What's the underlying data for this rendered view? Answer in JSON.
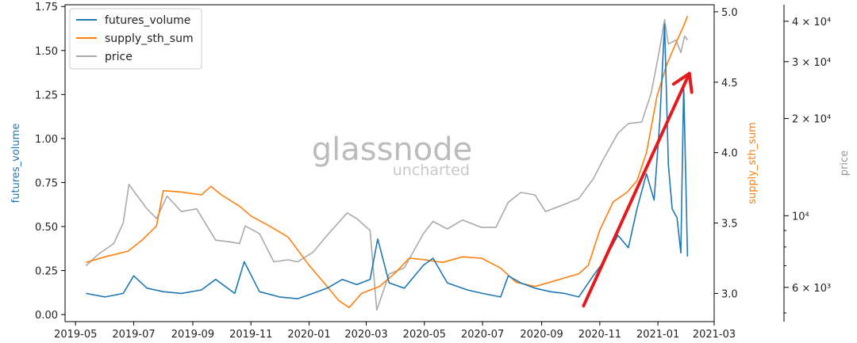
{
  "chart_data": {
    "type": "line",
    "x_ticks": [
      "2019-05",
      "2019-07",
      "2019-09",
      "2019-11",
      "2020-01",
      "2020-03",
      "2020-05",
      "2020-07",
      "2020-09",
      "2020-11",
      "2021-01",
      "2021-03"
    ],
    "axes": {
      "left": {
        "label": "futures_volume",
        "ticks": [
          "0.00",
          "0.25",
          "0.50",
          "0.75",
          "1.00",
          "1.25",
          "1.50",
          "1.75"
        ],
        "range": [
          -0.04,
          1.76
        ],
        "color": "#1f77b4"
      },
      "right1": {
        "label": "supply_sth_sum",
        "ticks": [
          "3.0",
          "3.5",
          "4.0",
          "4.5",
          "5.0"
        ],
        "range": [
          2.8,
          5.05
        ],
        "color": "#ff7f0e"
      },
      "right2": {
        "label": "price",
        "ticks": [
          "6 × 10³",
          "10⁴",
          "2 × 10⁴",
          "3 × 10⁴",
          "4 × 10⁴"
        ],
        "tick_values": [
          6000,
          10000,
          20000,
          30000,
          40000
        ],
        "range": [
          4700,
          45000
        ],
        "scale": "log",
        "color": "#888888"
      }
    },
    "legend": {
      "placement": "top-left",
      "entries": [
        "futures_volume",
        "supply_sth_sum",
        "price"
      ]
    },
    "watermark": {
      "main": "glassnode",
      "sub": "uncharted"
    },
    "series": [
      {
        "name": "futures_volume",
        "color": "#1f77b4",
        "axis": "left",
        "points": [
          [
            "2019-05-12",
            0.12
          ],
          [
            "2019-06-01",
            0.1
          ],
          [
            "2019-06-20",
            0.12
          ],
          [
            "2019-07-01",
            0.22
          ],
          [
            "2019-07-15",
            0.15
          ],
          [
            "2019-08-01",
            0.13
          ],
          [
            "2019-08-20",
            0.12
          ],
          [
            "2019-09-10",
            0.14
          ],
          [
            "2019-09-25",
            0.2
          ],
          [
            "2019-10-15",
            0.12
          ],
          [
            "2019-10-25",
            0.3
          ],
          [
            "2019-11-10",
            0.13
          ],
          [
            "2019-12-01",
            0.1
          ],
          [
            "2019-12-20",
            0.09
          ],
          [
            "2020-01-05",
            0.12
          ],
          [
            "2020-01-20",
            0.15
          ],
          [
            "2020-02-05",
            0.2
          ],
          [
            "2020-02-20",
            0.17
          ],
          [
            "2020-03-05",
            0.2
          ],
          [
            "2020-03-13",
            0.43
          ],
          [
            "2020-03-25",
            0.18
          ],
          [
            "2020-04-10",
            0.15
          ],
          [
            "2020-04-30",
            0.28
          ],
          [
            "2020-05-10",
            0.32
          ],
          [
            "2020-05-25",
            0.18
          ],
          [
            "2020-06-15",
            0.14
          ],
          [
            "2020-07-01",
            0.12
          ],
          [
            "2020-07-20",
            0.1
          ],
          [
            "2020-07-28",
            0.22
          ],
          [
            "2020-08-10",
            0.18
          ],
          [
            "2020-08-25",
            0.15
          ],
          [
            "2020-09-10",
            0.13
          ],
          [
            "2020-09-25",
            0.12
          ],
          [
            "2020-10-10",
            0.1
          ],
          [
            "2020-10-25",
            0.22
          ],
          [
            "2020-11-05",
            0.3
          ],
          [
            "2020-11-20",
            0.45
          ],
          [
            "2020-12-01",
            0.38
          ],
          [
            "2020-12-10",
            0.6
          ],
          [
            "2020-12-20",
            0.8
          ],
          [
            "2020-12-28",
            0.65
          ],
          [
            "2021-01-03",
            1.1
          ],
          [
            "2021-01-08",
            1.65
          ],
          [
            "2021-01-12",
            0.85
          ],
          [
            "2021-01-16",
            0.6
          ],
          [
            "2021-01-21",
            0.55
          ],
          [
            "2021-01-25",
            0.35
          ],
          [
            "2021-01-28",
            1.3
          ],
          [
            "2021-02-01",
            0.33
          ]
        ]
      },
      {
        "name": "supply_sth_sum",
        "color": "#ff7f0e",
        "axis": "right1",
        "points": [
          [
            "2019-05-12",
            3.22
          ],
          [
            "2019-06-01",
            3.26
          ],
          [
            "2019-06-25",
            3.3
          ],
          [
            "2019-07-10",
            3.38
          ],
          [
            "2019-07-25",
            3.48
          ],
          [
            "2019-08-01",
            3.73
          ],
          [
            "2019-08-20",
            3.72
          ],
          [
            "2019-09-10",
            3.7
          ],
          [
            "2019-09-20",
            3.76
          ],
          [
            "2019-10-01",
            3.7
          ],
          [
            "2019-10-20",
            3.62
          ],
          [
            "2019-11-01",
            3.55
          ],
          [
            "2019-11-20",
            3.48
          ],
          [
            "2019-12-10",
            3.4
          ],
          [
            "2020-01-01",
            3.2
          ],
          [
            "2020-01-20",
            3.05
          ],
          [
            "2020-02-01",
            2.95
          ],
          [
            "2020-02-12",
            2.9
          ],
          [
            "2020-02-25",
            3.0
          ],
          [
            "2020-03-15",
            3.05
          ],
          [
            "2020-04-01",
            3.15
          ],
          [
            "2020-04-15",
            3.25
          ],
          [
            "2020-05-01",
            3.24
          ],
          [
            "2020-05-20",
            3.22
          ],
          [
            "2020-06-10",
            3.26
          ],
          [
            "2020-06-30",
            3.25
          ],
          [
            "2020-07-20",
            3.18
          ],
          [
            "2020-08-05",
            3.08
          ],
          [
            "2020-08-25",
            3.05
          ],
          [
            "2020-09-10",
            3.08
          ],
          [
            "2020-09-30",
            3.12
          ],
          [
            "2020-10-10",
            3.14
          ],
          [
            "2020-10-20",
            3.2
          ],
          [
            "2020-11-01",
            3.45
          ],
          [
            "2020-11-15",
            3.65
          ],
          [
            "2020-11-30",
            3.72
          ],
          [
            "2020-12-10",
            3.8
          ],
          [
            "2020-12-20",
            4.0
          ],
          [
            "2020-12-31",
            4.4
          ],
          [
            "2021-01-10",
            4.62
          ],
          [
            "2021-01-20",
            4.78
          ],
          [
            "2021-01-28",
            4.9
          ],
          [
            "2021-02-01",
            4.97
          ]
        ]
      },
      {
        "name": "price",
        "color": "#aaaaaa",
        "axis": "right2",
        "points": [
          [
            "2019-05-12",
            7000
          ],
          [
            "2019-05-25",
            7600
          ],
          [
            "2019-06-10",
            8200
          ],
          [
            "2019-06-20",
            9500
          ],
          [
            "2019-06-26",
            12500
          ],
          [
            "2019-07-05",
            11500
          ],
          [
            "2019-07-15",
            10500
          ],
          [
            "2019-07-25",
            9800
          ],
          [
            "2019-08-05",
            11500
          ],
          [
            "2019-08-20",
            10300
          ],
          [
            "2019-09-05",
            10500
          ],
          [
            "2019-09-25",
            8400
          ],
          [
            "2019-10-10",
            8300
          ],
          [
            "2019-10-20",
            8200
          ],
          [
            "2019-10-26",
            9300
          ],
          [
            "2019-11-10",
            8800
          ],
          [
            "2019-11-25",
            7200
          ],
          [
            "2019-12-10",
            7300
          ],
          [
            "2019-12-20",
            7200
          ],
          [
            "2020-01-05",
            7700
          ],
          [
            "2020-01-20",
            8700
          ],
          [
            "2020-02-10",
            10200
          ],
          [
            "2020-02-20",
            9800
          ],
          [
            "2020-03-05",
            9000
          ],
          [
            "2020-03-12",
            5100
          ],
          [
            "2020-03-25",
            6600
          ],
          [
            "2020-04-10",
            6900
          ],
          [
            "2020-04-30",
            8800
          ],
          [
            "2020-05-10",
            9600
          ],
          [
            "2020-05-25",
            9100
          ],
          [
            "2020-06-10",
            9700
          ],
          [
            "2020-06-30",
            9200
          ],
          [
            "2020-07-15",
            9200
          ],
          [
            "2020-07-28",
            11000
          ],
          [
            "2020-08-10",
            11800
          ],
          [
            "2020-08-25",
            11600
          ],
          [
            "2020-09-05",
            10300
          ],
          [
            "2020-09-20",
            10700
          ],
          [
            "2020-10-10",
            11300
          ],
          [
            "2020-10-25",
            13000
          ],
          [
            "2020-11-05",
            15000
          ],
          [
            "2020-11-20",
            18000
          ],
          [
            "2020-12-01",
            19300
          ],
          [
            "2020-12-15",
            19500
          ],
          [
            "2020-12-25",
            24000
          ],
          [
            "2021-01-03",
            33000
          ],
          [
            "2021-01-08",
            40500
          ],
          [
            "2021-01-12",
            34000
          ],
          [
            "2021-01-20",
            35000
          ],
          [
            "2021-01-25",
            32000
          ],
          [
            "2021-01-29",
            36000
          ],
          [
            "2021-02-01",
            35000
          ]
        ]
      }
    ],
    "annotation_arrow": {
      "from": [
        "2020-10-15",
        0.05
      ],
      "to": [
        "2021-02-03",
        1.37
      ],
      "color": "#e41a1c"
    }
  }
}
